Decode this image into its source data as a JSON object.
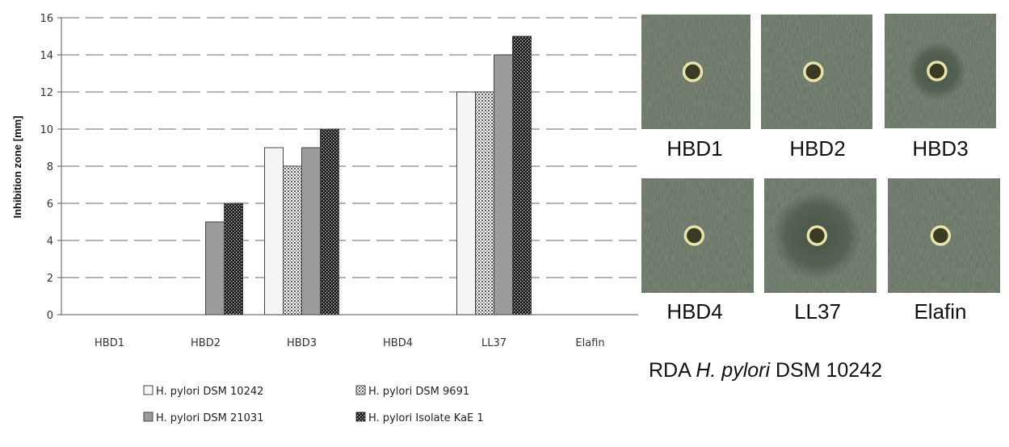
{
  "chart_data": {
    "type": "bar",
    "ylabel": "Inhibition zone [mm]",
    "xlabel": "",
    "ylim": [
      0,
      16
    ],
    "yticks": [
      0,
      2,
      4,
      6,
      8,
      10,
      12,
      14,
      16
    ],
    "grid": true,
    "legend_placement": "bottom",
    "categories": [
      "HBD1",
      "HBD2",
      "HBD3",
      "HBD4",
      "LL37",
      "Elafin"
    ],
    "series": [
      {
        "name": "H. pylori DSM 10242",
        "pattern": "white",
        "values": [
          0,
          0,
          9,
          0,
          12,
          0
        ]
      },
      {
        "name": "H. pylori DSM 9691",
        "pattern": "crosshatch",
        "values": [
          0,
          0,
          8,
          0,
          12,
          0
        ]
      },
      {
        "name": "H. pylori DSM 21031",
        "pattern": "gray",
        "values": [
          0,
          5,
          9,
          0,
          14,
          0
        ]
      },
      {
        "name": "H. pylori Isolate KaE 1",
        "pattern": "checker",
        "values": [
          0,
          6,
          10,
          0,
          15,
          0
        ]
      }
    ]
  },
  "photos": {
    "items": [
      {
        "label": "HBD1",
        "zone": 0
      },
      {
        "label": "HBD2",
        "zone": 0
      },
      {
        "label": "HBD3",
        "zone": 1
      },
      {
        "label": "HBD4",
        "zone": 0
      },
      {
        "label": "LL37",
        "zone": 2
      },
      {
        "label": "Elafin",
        "zone": 0
      }
    ],
    "caption_prefix": "RDA ",
    "caption_italic": "H. pylori",
    "caption_suffix": " DSM 10242"
  },
  "colors": {
    "grid": "#9a9a9a",
    "agar": "#5f6b5c",
    "bar_gray": "#9c9c9c",
    "bar_white": "#f6f4f4"
  }
}
